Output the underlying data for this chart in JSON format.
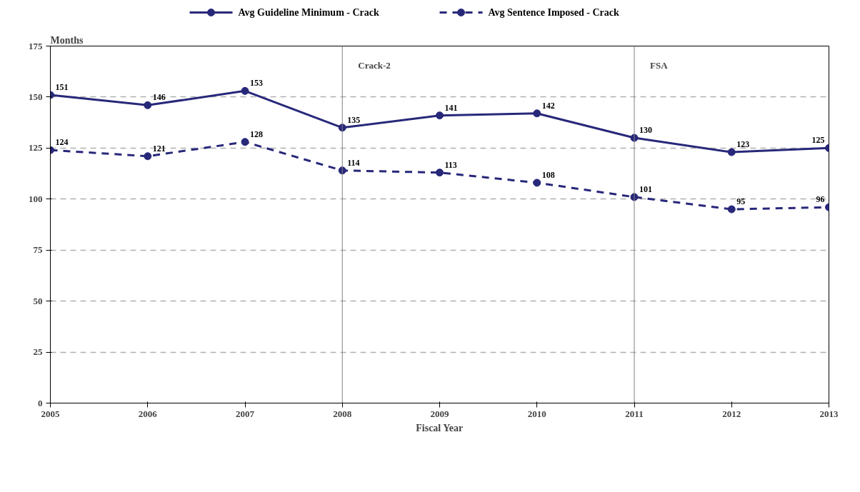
{
  "chart_data": {
    "type": "line",
    "xlabel": "Fiscal Year",
    "ylabel": "Months",
    "x": [
      2005,
      2006,
      2007,
      2008,
      2009,
      2010,
      2011,
      2012,
      2013
    ],
    "series": [
      {
        "name": "Avg Guideline Minimum - Crack",
        "color": "#28287a",
        "line_style": "solid",
        "values": [
          151,
          146,
          153,
          135,
          141,
          142,
          130,
          123,
          125
        ]
      },
      {
        "name": "Avg Sentence Imposed - Crack",
        "color": "#28287a",
        "line_style": "dashed",
        "values": [
          124,
          121,
          128,
          114,
          113,
          108,
          101,
          95,
          96
        ]
      }
    ],
    "xlim": [
      2005,
      2013
    ],
    "xticks": [
      2005,
      2006,
      2007,
      2008,
      2009,
      2010,
      2011,
      2012,
      2013
    ],
    "ylim": [
      0,
      175
    ],
    "yticks": [
      0,
      25,
      50,
      75,
      100,
      125,
      150,
      175
    ],
    "ref_lines": [
      {
        "axis": "x",
        "value": 2008,
        "label": "Crack-2",
        "color": "#808080"
      },
      {
        "axis": "x",
        "value": 2011,
        "label": "FSA",
        "color": "#808080"
      }
    ],
    "grid": "y",
    "legend": "top",
    "marker": "circle",
    "data_labels": true
  }
}
